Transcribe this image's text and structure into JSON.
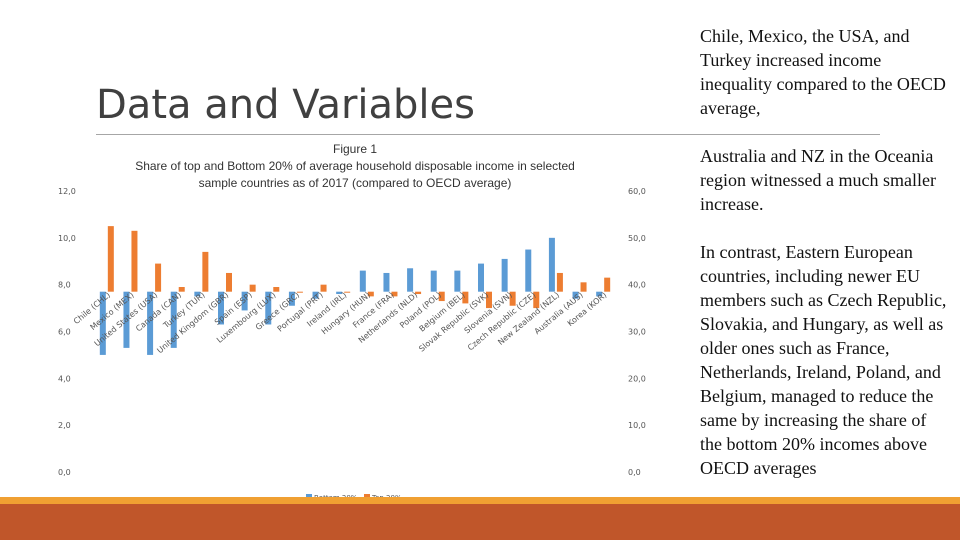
{
  "slide": {
    "title": "Data and Variables",
    "paragraphs": [
      "Chile, Mexico, the USA, and Turkey increased income inequality compared to the OECD average,",
      "Australia and NZ in the Oceania region witnessed a much smaller increase.",
      "In contrast, Eastern European countries, including newer EU members such as Czech Republic, Slovakia, and Hungary, as well as older ones such as France, Netherlands, Ireland, Poland, and Belgium, managed to reduce the same by increasing the share of the bottom 20% incomes above OECD averages"
    ]
  },
  "colors": {
    "bottom_series": "#5b9bd5",
    "top_series": "#ed7d31",
    "accent_bar_top": "#f0a032",
    "accent_bar_bottom": "#c0562a"
  },
  "chart_data": {
    "type": "bar",
    "title_lines": [
      "Figure 1",
      "Share of top and Bottom 20% of average household disposable income in selected",
      "sample countries as of 2017 (compared to OECD average)"
    ],
    "categories": [
      "Chile (CHL)",
      "Mexico (MEX)",
      "United States (USA)",
      "Canada (CAN)",
      "Turkey (TUR)",
      "United Kingdom (GBR)",
      "Spain (ESP)",
      "Luxembourg (LUX)",
      "Greece (GRC)",
      "Portugal (PRT)",
      "Ireland (IRL)",
      "Hungary (HUN)",
      "France (FRA)",
      "Netherlands (NLD)",
      "Poland (POL)",
      "Belgium (BEL)",
      "Slovak Republic (SVK)",
      "Slovenia (SVN)",
      "Czech Republic (CZE)",
      "New Zealand (NZL)",
      "Australia (AUS)",
      "Korea (KOR)"
    ],
    "left_axis": {
      "ylim": [
        0,
        12
      ],
      "ticks": [
        "0,0",
        "2,0",
        "4,0",
        "6,0",
        "8,0",
        "10,0",
        "12,0"
      ],
      "baseline": 7.7
    },
    "right_axis": {
      "ylim": [
        0,
        60
      ],
      "ticks": [
        "0,0",
        "10,0",
        "20,0",
        "30,0",
        "40,0",
        "50,0",
        "60,0"
      ],
      "baseline": 38.5
    },
    "series": [
      {
        "name": "Bottom 20%",
        "axis": "left",
        "values": [
          5.0,
          5.3,
          5.0,
          5.3,
          7.5,
          6.3,
          6.9,
          6.3,
          7.1,
          7.4,
          7.6,
          8.6,
          8.5,
          8.7,
          8.6,
          8.6,
          8.9,
          9.1,
          9.5,
          10.0,
          7.4,
          7.5
        ]
      },
      {
        "name": "Top 20%",
        "axis": "left",
        "values": [
          10.5,
          10.3,
          8.9,
          7.9,
          9.4,
          8.5,
          8.0,
          7.9,
          7.7,
          8.0,
          7.7,
          7.5,
          7.5,
          7.6,
          7.3,
          7.2,
          7.0,
          7.1,
          7.0,
          8.5,
          8.1,
          8.3
        ]
      }
    ],
    "grid": false,
    "legend_position": "bottom"
  }
}
